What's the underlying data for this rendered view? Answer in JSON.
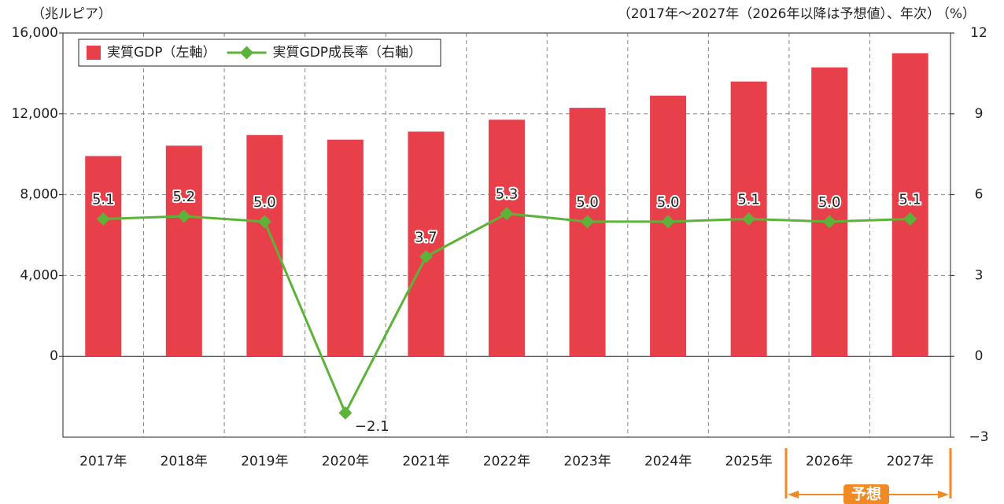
{
  "chart_data": {
    "type": "bar-line",
    "ylabel": "（兆ルピア）",
    "subtitle": "（2017年～2027年（2026年以降は予想値）、年次）",
    "y2label": "（%）",
    "categories": [
      "2017年",
      "2018年",
      "2019年",
      "2020年",
      "2021年",
      "2022年",
      "2023年",
      "2024年",
      "2025年",
      "2026年",
      "2027年"
    ],
    "series": [
      {
        "name": "実質GDP（左軸）",
        "type": "bar",
        "color": "#e8404a",
        "values": [
          9912,
          10425,
          10950,
          10722,
          11120,
          11710,
          12300,
          12900,
          13600,
          14300,
          15000
        ]
      },
      {
        "name": "実質GDP成長率（右軸）",
        "type": "line",
        "axis": "y2",
        "color": "#5db33a",
        "values": [
          5.1,
          5.2,
          5.0,
          -2.1,
          3.7,
          5.3,
          5.0,
          5.0,
          5.1,
          5.0,
          5.1
        ],
        "value_labels": [
          "5.1",
          "5.2",
          "5.0",
          "−2.1",
          "3.7",
          "5.3",
          "5.0",
          "5.0",
          "5.1",
          "5.0",
          "5.1"
        ]
      }
    ],
    "ylim": [
      -4000,
      16000
    ],
    "yticks": [
      {
        "value": 0,
        "label": "0"
      },
      {
        "value": 4000,
        "label": "4,000"
      },
      {
        "value": 8000,
        "label": "8,000"
      },
      {
        "value": 12000,
        "label": "12,000"
      },
      {
        "value": 16000,
        "label": "16,000"
      }
    ],
    "y2lim": [
      -3,
      12
    ],
    "y2ticks": [
      {
        "value": -3,
        "label": "−3"
      },
      0,
      3,
      6,
      9,
      12
    ],
    "grid": true,
    "legend": "top-left",
    "annotation": "予想"
  }
}
